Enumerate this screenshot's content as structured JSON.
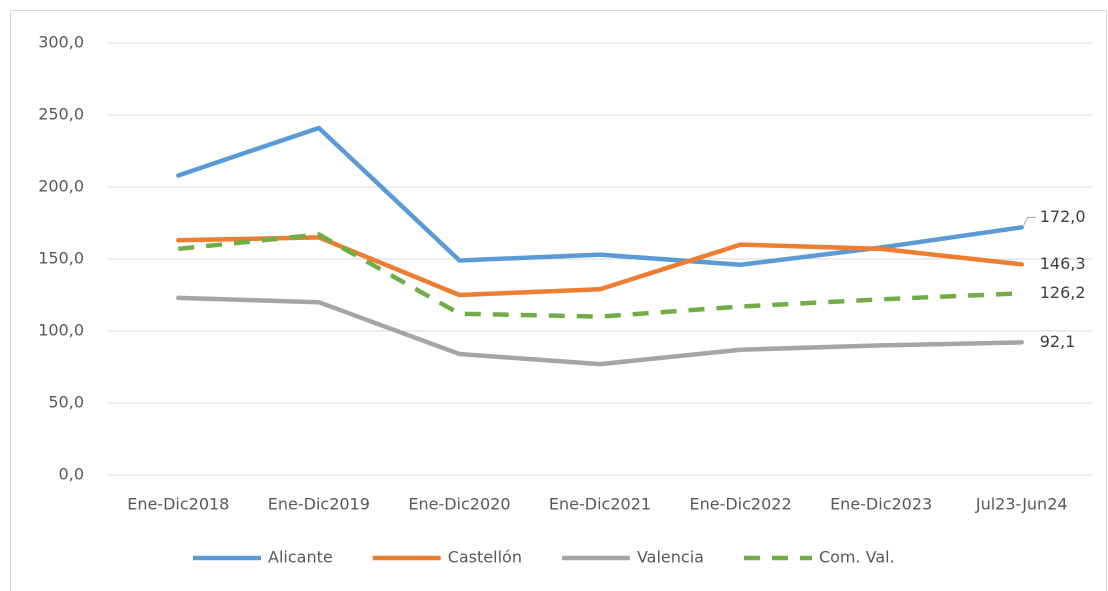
{
  "chart_data": {
    "type": "line",
    "categories": [
      "Ene-Dic2018",
      "Ene-Dic2019",
      "Ene-Dic2020",
      "Ene-Dic2021",
      "Ene-Dic2022",
      "Ene-Dic2023",
      "Jul23-Jun24"
    ],
    "series": [
      {
        "name": "Alicante",
        "color": "#5b9bd5",
        "dashed": false,
        "values": [
          208,
          241,
          149,
          153,
          146,
          158,
          172.0
        ],
        "value_labels": [
          null,
          null,
          null,
          null,
          null,
          null,
          "172,0"
        ]
      },
      {
        "name": "Castellón",
        "color": "#ed7d31",
        "dashed": false,
        "values": [
          163,
          165,
          125,
          129,
          160,
          157,
          146.3
        ],
        "value_labels": [
          null,
          null,
          null,
          null,
          null,
          null,
          "146,3"
        ]
      },
      {
        "name": "Valencia",
        "color": "#a5a5a5",
        "dashed": false,
        "values": [
          123,
          120,
          84,
          77,
          87,
          90,
          92.1
        ],
        "value_labels": [
          null,
          null,
          null,
          null,
          null,
          null,
          "92,1"
        ]
      },
      {
        "name": "Com. Val.",
        "color": "#70ad47",
        "dashed": true,
        "values": [
          157,
          167,
          112,
          110,
          117,
          122,
          126.2
        ],
        "value_labels": [
          null,
          null,
          null,
          null,
          null,
          null,
          "126,2"
        ]
      }
    ],
    "ylim": [
      0,
      300
    ],
    "yticks": [
      {
        "value": 0,
        "label": "0,0"
      },
      {
        "value": 50,
        "label": "50,0"
      },
      {
        "value": 100,
        "label": "100,0"
      },
      {
        "value": 150,
        "label": "150,0"
      },
      {
        "value": 200,
        "label": "200,0"
      },
      {
        "value": 250,
        "label": "250,0"
      },
      {
        "value": 300,
        "label": "300,0"
      }
    ],
    "grid": true,
    "legend": "bottom"
  }
}
